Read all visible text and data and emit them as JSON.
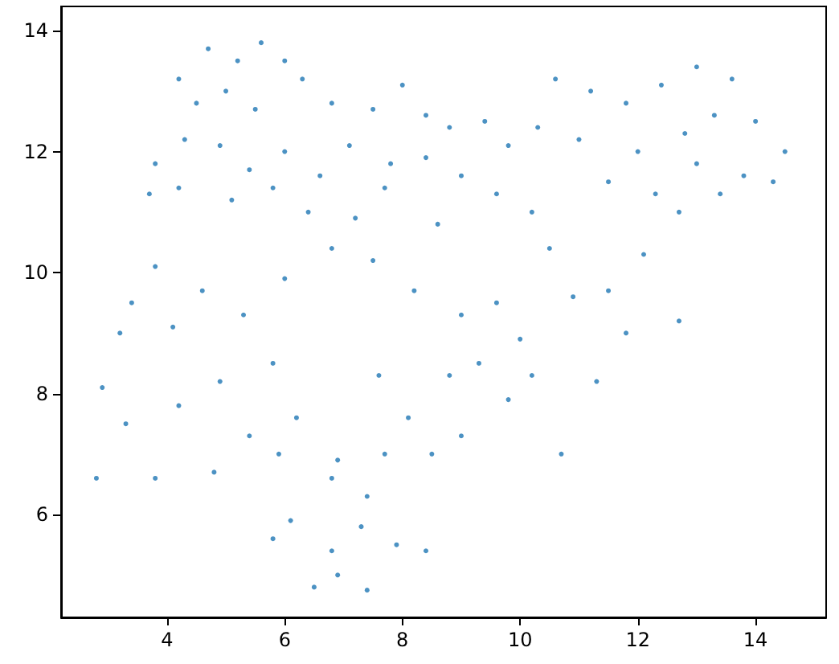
{
  "chart_data": {
    "type": "scatter",
    "xlim": [
      2.2,
      15.2
    ],
    "ylim": [
      4.3,
      14.4
    ],
    "xticks": [
      4,
      6,
      8,
      10,
      12,
      14
    ],
    "yticks": [
      6,
      8,
      10,
      12,
      14
    ],
    "grid": false,
    "marker": "circle",
    "series": [
      {
        "color": "#1f77b4",
        "x": [
          4.7,
          5.2,
          5.6,
          6.0,
          4.2,
          4.5,
          5.0,
          5.5,
          6.3,
          6.8,
          7.5,
          8.0,
          8.4,
          3.8,
          4.3,
          4.9,
          5.4,
          6.0,
          6.6,
          7.1,
          7.8,
          8.4,
          3.7,
          4.2,
          5.1,
          5.8,
          6.4,
          7.2,
          7.7,
          8.8,
          9.4,
          9.8,
          10.3,
          10.6,
          9.0,
          9.6,
          10.2,
          8.6,
          11.2,
          11.8,
          12.4,
          13.0,
          13.6,
          13.3,
          14.0,
          14.5,
          12.0,
          11.5,
          12.3,
          13.0,
          13.8,
          14.3,
          12.7,
          11.0,
          12.8,
          13.4,
          3.4,
          3.8,
          4.1,
          4.6,
          5.3,
          6.0,
          6.8,
          7.5,
          8.2,
          9.0,
          9.6,
          10.5,
          10.9,
          11.5,
          12.1,
          12.7,
          10.0,
          11.8,
          3.2,
          2.9,
          3.3,
          2.8,
          3.8,
          4.2,
          4.9,
          5.4,
          4.8,
          5.8,
          6.2,
          6.9,
          7.6,
          8.1,
          8.8,
          9.3,
          9.8,
          9.0,
          8.5,
          10.7,
          11.3,
          10.2,
          7.4,
          6.8,
          6.1,
          5.8,
          6.8,
          7.3,
          7.9,
          8.4,
          6.9,
          7.4,
          6.5,
          5.9,
          7.7
        ],
        "values": [
          13.7,
          13.5,
          13.8,
          13.5,
          13.2,
          12.8,
          13.0,
          12.7,
          13.2,
          12.8,
          12.7,
          13.1,
          12.6,
          11.8,
          12.2,
          12.1,
          11.7,
          12.0,
          11.6,
          12.1,
          11.8,
          11.9,
          11.3,
          11.4,
          11.2,
          11.4,
          11.0,
          10.9,
          11.4,
          12.4,
          12.5,
          12.1,
          12.4,
          13.2,
          11.6,
          11.3,
          11.0,
          10.8,
          13.0,
          12.8,
          13.1,
          13.4,
          13.2,
          12.6,
          12.5,
          12.0,
          12.0,
          11.5,
          11.3,
          11.8,
          11.6,
          11.5,
          11.0,
          12.2,
          12.3,
          11.3,
          9.5,
          10.1,
          9.1,
          9.7,
          9.3,
          9.9,
          10.4,
          10.2,
          9.7,
          9.3,
          9.5,
          10.4,
          9.6,
          9.7,
          10.3,
          9.2,
          8.9,
          9.0,
          9.0,
          8.1,
          7.5,
          6.6,
          6.6,
          7.8,
          8.2,
          7.3,
          6.7,
          8.5,
          7.6,
          6.9,
          8.3,
          7.6,
          8.3,
          8.5,
          7.9,
          7.3,
          7.0,
          7.0,
          8.2,
          8.3,
          6.3,
          6.6,
          5.9,
          5.6,
          5.4,
          5.8,
          5.5,
          5.4,
          5.0,
          4.75,
          4.8,
          7.0,
          7.0
        ]
      }
    ]
  }
}
